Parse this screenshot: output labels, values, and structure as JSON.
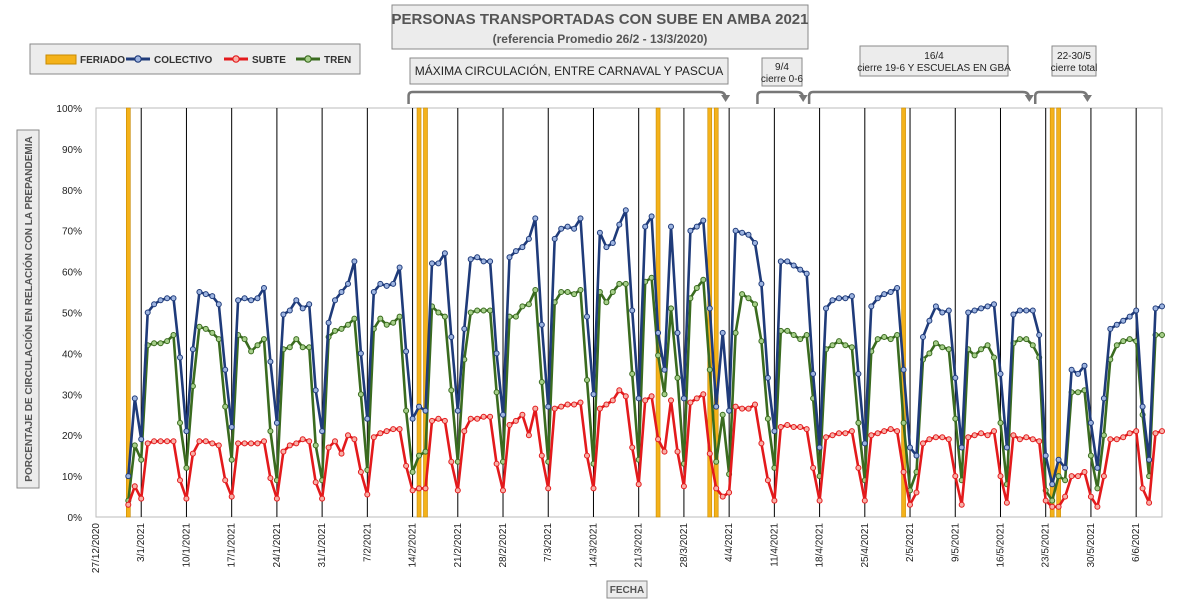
{
  "chart_data": {
    "type": "line",
    "title": "PERSONAS TRANSPORTADAS CON SUBE EN AMBA 2021",
    "subtitle": "(referencia Promedio 26/2 - 13/3/2020)",
    "xlabel": "FECHA",
    "ylabel": "PORCENTAJE DE CIRCULACIÓN EN RELACIÓN CON LA PREPANDEMIA",
    "ylim": [
      0,
      100
    ],
    "y_ticks": [
      "0%",
      "10%",
      "20%",
      "30%",
      "40%",
      "50%",
      "60%",
      "70%",
      "80%",
      "90%",
      "100%"
    ],
    "x_start": "2020-12-27",
    "x_end": "2021-06-10",
    "x_ticks": [
      "27/12/2020",
      "3/1/2021",
      "10/1/2021",
      "17/1/2021",
      "24/1/2021",
      "31/1/2021",
      "7/2/2021",
      "14/2/2021",
      "21/2/2021",
      "28/2/2021",
      "7/3/2021",
      "14/3/2021",
      "21/3/2021",
      "28/3/2021",
      "4/4/2021",
      "11/4/2021",
      "18/4/2021",
      "25/4/2021",
      "2/5/2021",
      "9/5/2021",
      "16/5/2021",
      "23/5/2021",
      "30/5/2021",
      "6/6/2021"
    ],
    "grid": "vertical weekly lines",
    "legend": "top-left",
    "series": [
      {
        "name": "COLECTIVO",
        "color": "#1f3b7a",
        "start": "2021-01-01",
        "values": [
          10,
          29,
          19,
          50,
          52,
          53,
          53.5,
          53.5,
          39,
          21,
          41,
          55,
          54.5,
          54,
          52,
          36,
          22,
          53,
          53.5,
          53,
          53.5,
          56,
          38,
          23,
          49.5,
          50.5,
          53,
          51,
          52,
          31,
          21,
          47.5,
          53,
          55,
          57,
          62.5,
          40,
          24,
          55,
          57,
          56.5,
          57,
          61,
          40.5,
          24,
          27,
          26,
          62,
          62,
          64.5,
          44,
          26,
          46,
          63,
          63.5,
          62.5,
          62.5,
          40,
          25,
          63.5,
          65,
          66,
          68,
          73,
          47,
          27,
          68,
          70.5,
          71,
          70.5,
          73,
          49,
          30,
          69.5,
          66,
          67,
          71.5,
          75,
          50.5,
          29,
          71,
          73.5,
          45,
          36,
          71,
          45,
          29,
          70,
          71,
          72.5,
          51,
          27,
          45,
          26,
          70,
          69.5,
          69,
          67,
          57,
          34,
          21,
          62.5,
          62.5,
          61.5,
          60.5,
          59.5,
          35,
          17,
          51,
          53,
          53.5,
          53.5,
          54,
          35,
          18,
          51.5,
          53.5,
          54.5,
          55,
          56,
          36,
          17,
          15,
          44,
          48,
          51.5,
          50,
          50.5,
          34,
          17,
          50,
          50.5,
          51,
          51.5,
          52,
          35,
          17,
          49.5,
          50.5,
          50.5,
          50.5,
          44.5,
          15,
          8,
          14,
          12,
          36,
          35,
          37,
          23,
          12,
          29,
          46,
          47,
          48,
          49,
          50.5,
          27,
          14,
          51,
          51.5
        ]
      },
      {
        "name": "SUBTE",
        "color": "#e31a1c",
        "start": "2021-01-01",
        "values": [
          3,
          7.5,
          4.5,
          18,
          18.5,
          18.5,
          18.5,
          18.5,
          9,
          4.5,
          15.5,
          18.5,
          18.5,
          18,
          17.5,
          9,
          5,
          18,
          18,
          18,
          18,
          18.5,
          9.5,
          4.5,
          16,
          17.5,
          18,
          19,
          18.5,
          8.5,
          4.5,
          17,
          18.5,
          15.5,
          20,
          19,
          11,
          5.5,
          19.5,
          20.5,
          21,
          21.5,
          21.5,
          12.5,
          6.5,
          7,
          7,
          23.5,
          24,
          23.5,
          13.5,
          6.5,
          21,
          24,
          24,
          24.5,
          24.5,
          13,
          6.5,
          22.5,
          23.5,
          25,
          20,
          26.5,
          15,
          7,
          26.5,
          27,
          27.5,
          27.5,
          28,
          15,
          7,
          26.5,
          27.5,
          28.5,
          31,
          29.5,
          17,
          8,
          28.5,
          29.5,
          19,
          16,
          28.5,
          16,
          7.5,
          28,
          29,
          30,
          15.5,
          7,
          5,
          6,
          27,
          26.5,
          26.5,
          27.5,
          18,
          9,
          4,
          22,
          22.5,
          22,
          22,
          21.5,
          12,
          4,
          19.5,
          20,
          20.5,
          20.5,
          21,
          12,
          4,
          20,
          20.5,
          21,
          21.5,
          21,
          11,
          3,
          6,
          18,
          19,
          19.5,
          19.5,
          19,
          10,
          3,
          19.5,
          20,
          20.5,
          20,
          21,
          10,
          3.5,
          20,
          19,
          19.5,
          19,
          18.5,
          4,
          2.5,
          2.5,
          5,
          10,
          10,
          11,
          5,
          2.5,
          10,
          19,
          19,
          19.5,
          20.5,
          21,
          7,
          3.5,
          20.5,
          21
        ]
      },
      {
        "name": "TREN",
        "color": "#3a6b1f",
        "start": "2021-01-01",
        "values": [
          4,
          17.5,
          14,
          42,
          42.5,
          42.5,
          43,
          44.5,
          23,
          12,
          32,
          46.5,
          46,
          45,
          43.5,
          27,
          14,
          44.5,
          43.5,
          40.5,
          42,
          43.5,
          21,
          9,
          41,
          41.5,
          43.5,
          41.5,
          41.5,
          17.5,
          9,
          44,
          45.5,
          46,
          47,
          48.5,
          30,
          11.5,
          46,
          48.5,
          47,
          47.5,
          49,
          26,
          11,
          15,
          16,
          51.5,
          50,
          49,
          31,
          13.5,
          38.5,
          50,
          50.5,
          50.5,
          50.5,
          30.5,
          13.5,
          49,
          49,
          51.5,
          52,
          55.5,
          33,
          13.5,
          52.5,
          55,
          55,
          54.5,
          55.5,
          33.5,
          13,
          55,
          52.5,
          55,
          57,
          57,
          35,
          14,
          57.5,
          58.5,
          39.5,
          30,
          51,
          34,
          13,
          53.5,
          56,
          58,
          36,
          13.5,
          25,
          10.5,
          45,
          54.5,
          53.5,
          52,
          43,
          24,
          12,
          45.5,
          45.5,
          44.5,
          43.5,
          44.5,
          29,
          10,
          41,
          42,
          43,
          42,
          41.5,
          23,
          9,
          40.5,
          43.5,
          44,
          43.5,
          44.5,
          23,
          6.5,
          11,
          38.5,
          40,
          42.5,
          41.5,
          41,
          24,
          9,
          41,
          39.5,
          41,
          42,
          39,
          23,
          8,
          42.5,
          43.5,
          43.5,
          42,
          39,
          6.5,
          4,
          10,
          9,
          30.5,
          30.5,
          31,
          15,
          7,
          20,
          38.5,
          42,
          43,
          43.5,
          43,
          25,
          10,
          44.5,
          44.5
        ]
      }
    ],
    "feriado": {
      "name": "FERIADO",
      "color": "#f4b21a",
      "dates": [
        "2021-01-01",
        "2021-02-15",
        "2021-02-16",
        "2021-03-24",
        "2021-04-01",
        "2021-04-02",
        "2021-05-01",
        "2021-05-24",
        "2021-05-25"
      ]
    },
    "annotations": [
      {
        "text": "MÁXIMA CIRCULACIÓN, ENTRE CARNAVAL Y PASCUA",
        "from": "2021-02-14",
        "to": "2021-04-04"
      },
      {
        "text": "9/4",
        "text2": "cierre 0-6",
        "from": "2021-04-09",
        "to": "2021-04-16"
      },
      {
        "text": "16/4",
        "text2": "cierre 19-6 Y ESCUELAS EN GBA",
        "from": "2021-04-17",
        "to": "2021-05-21"
      },
      {
        "text": "22-30/5",
        "text2": "cierre total",
        "from": "2021-05-22",
        "to": "2021-05-30"
      }
    ]
  }
}
